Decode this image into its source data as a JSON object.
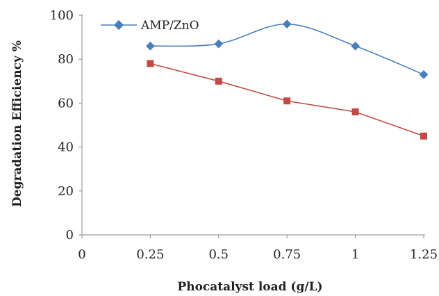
{
  "chart_data": {
    "type": "line",
    "x": [
      0.25,
      0.5,
      0.75,
      1,
      1.25
    ],
    "x_tick_labels": [
      "0",
      "0.25",
      "0.5",
      "0.75",
      "1",
      "1.25"
    ],
    "x_ticks": [
      0,
      0.25,
      0.5,
      0.75,
      1,
      1.25
    ],
    "y_tick_labels": [
      "0",
      "20",
      "40",
      "60",
      "80",
      "100"
    ],
    "y_ticks": [
      0,
      20,
      40,
      60,
      80,
      100
    ],
    "xlim": [
      0,
      1.25
    ],
    "ylim": [
      0,
      100
    ],
    "xlabel": "Phocatalyst load (g/L)",
    "ylabel": "Degradation Efficiency %",
    "grid": false,
    "legend_position": "top-left",
    "series": [
      {
        "name": "AMP/ZnO",
        "values": [
          86,
          87,
          96,
          86,
          73
        ],
        "color": "#4a7ebb",
        "marker": "diamond",
        "smooth": true
      },
      {
        "values": [
          78,
          70,
          61,
          56,
          45
        ],
        "color": "#be4b48",
        "marker": "square",
        "smooth": false
      }
    ]
  }
}
